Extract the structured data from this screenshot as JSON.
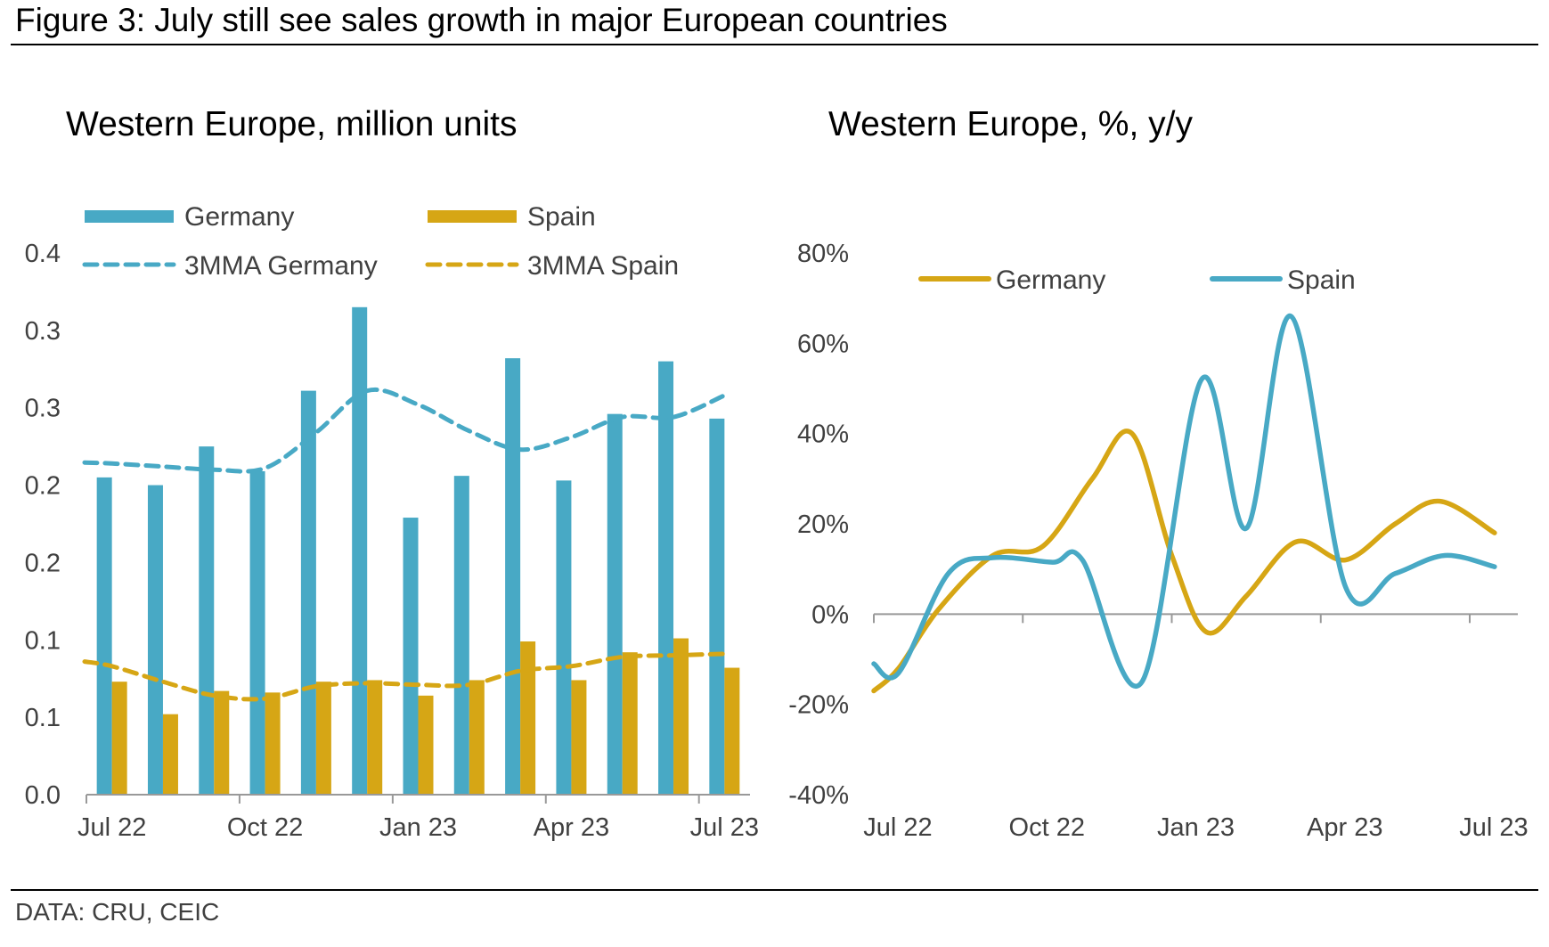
{
  "figure": {
    "title": "Figure 3: July still see sales growth in major European countries",
    "source": "DATA: CRU, CEIC"
  },
  "colors": {
    "germany_bar": "#48A9C5",
    "spain_bar": "#D6A615",
    "axis": "#999999",
    "text": "#404040"
  },
  "chart_data": [
    {
      "type": "bar",
      "title": "Western Europe, million units",
      "xlabel": "",
      "ylabel": "",
      "ylim": [
        0,
        0.35
      ],
      "yticks": [
        0,
        0.05,
        0.1,
        0.15,
        0.2,
        0.25,
        0.3,
        0.35
      ],
      "ytick_labels": [
        "0.0",
        "0.1",
        "0.1",
        "0.2",
        "0.2",
        "0.3",
        "0.3",
        "0.4"
      ],
      "categories": [
        "Jul 22",
        "Aug 22",
        "Sep 22",
        "Oct 22",
        "Nov 22",
        "Dec 22",
        "Jan 23",
        "Feb 23",
        "Mar 23",
        "Apr 23",
        "May 23",
        "Jun 23",
        "Jul 23"
      ],
      "xtick_labels": [
        "Jul 22",
        "Oct 22",
        "Jan 23",
        "Apr 23",
        "Jul 23"
      ],
      "xtick_indices": [
        0,
        3,
        6,
        9,
        12
      ],
      "grid": false,
      "legend_position": "top",
      "series": [
        {
          "name": "Germany",
          "kind": "bar",
          "color": "#48A9C5",
          "values": [
            0.205,
            0.2,
            0.225,
            0.209,
            0.261,
            0.315,
            0.179,
            0.206,
            0.282,
            0.203,
            0.246,
            0.28,
            0.243
          ]
        },
        {
          "name": "Spain",
          "kind": "bar",
          "color": "#D6A615",
          "values": [
            0.073,
            0.052,
            0.067,
            0.066,
            0.073,
            0.074,
            0.064,
            0.074,
            0.099,
            0.074,
            0.092,
            0.101,
            0.082
          ]
        },
        {
          "name": "3MMA Germany",
          "kind": "dashed-line",
          "color": "#48A9C5",
          "values": [
            0.214,
            0.212,
            0.21,
            0.211,
            0.234,
            0.261,
            0.252,
            0.235,
            0.223,
            0.231,
            0.244,
            0.244,
            0.258
          ]
        },
        {
          "name": "3MMA Spain",
          "kind": "dashed-line",
          "color": "#D6A615",
          "values": [
            0.083,
            0.073,
            0.064,
            0.062,
            0.07,
            0.072,
            0.071,
            0.071,
            0.08,
            0.083,
            0.089,
            0.09,
            0.091
          ]
        }
      ]
    },
    {
      "type": "line",
      "title": "Western Europe, %, y/y",
      "xlabel": "",
      "ylabel": "",
      "ylim": [
        -40,
        80
      ],
      "yticks": [
        -40,
        -20,
        0,
        20,
        40,
        60,
        80
      ],
      "ytick_labels": [
        "-40%",
        "-20%",
        "0%",
        "20%",
        "40%",
        "60%",
        "80%"
      ],
      "xtick_labels": [
        "Jul 22",
        "Oct 22",
        "Jan 23",
        "Apr 23",
        "Jul 23"
      ],
      "xtick_months": [
        0,
        3,
        6,
        9,
        12
      ],
      "xlim_months": [
        0,
        13
      ],
      "grid": false,
      "legend_position": "top",
      "series": [
        {
          "name": "Germany",
          "color": "#D6A615",
          "x": [
            0,
            0.5,
            1.3,
            2.4,
            3.4,
            4.4,
            5.2,
            6.0,
            6.7,
            7.5,
            8.5,
            9.5,
            10.5,
            11.4,
            12.5
          ],
          "values": [
            -17,
            -12,
            1,
            13,
            15,
            30,
            40,
            13,
            -4,
            4,
            16,
            12,
            20,
            25,
            18
          ]
        },
        {
          "name": "Spain",
          "color": "#48A9C5",
          "x": [
            0,
            0.5,
            1.5,
            2.4,
            3.6,
            4.2,
            5.4,
            6.6,
            7.5,
            8.4,
            9.5,
            10.5,
            11.5,
            12.5
          ],
          "values": [
            -11,
            -13,
            9,
            12.5,
            11.5,
            12,
            -15,
            52,
            19,
            66,
            6,
            9,
            13,
            10.5
          ]
        }
      ]
    }
  ]
}
